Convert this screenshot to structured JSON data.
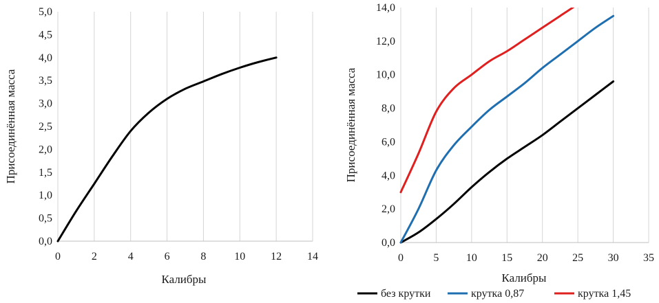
{
  "chart_data": [
    {
      "type": "line",
      "title": "",
      "xlabel": "Калибры",
      "ylabel": "Присоединённая масса",
      "xlim": [
        0,
        14
      ],
      "ylim": [
        0,
        5
      ],
      "x_ticks": [
        "0",
        "2",
        "4",
        "6",
        "8",
        "10",
        "12",
        "14"
      ],
      "y_ticks": [
        "0,0",
        "0,5",
        "1,0",
        "1,5",
        "2,0",
        "2,5",
        "3,0",
        "3,5",
        "4,0",
        "4,5",
        "5,0"
      ],
      "grid": "vertical",
      "series": [
        {
          "color": "#000000",
          "x": [
            0,
            1,
            2,
            3,
            4,
            5,
            6,
            7,
            8,
            9,
            10,
            11,
            12
          ],
          "y": [
            0,
            0.65,
            1.25,
            1.85,
            2.4,
            2.8,
            3.1,
            3.32,
            3.48,
            3.64,
            3.78,
            3.9,
            4.0
          ]
        }
      ]
    },
    {
      "type": "line",
      "title": "",
      "xlabel": "Калибры",
      "ylabel": "Присоединённая масса",
      "xlim": [
        0,
        35
      ],
      "ylim": [
        0,
        14
      ],
      "x_ticks": [
        "0",
        "5",
        "10",
        "15",
        "20",
        "25",
        "30",
        "35"
      ],
      "y_ticks": [
        "0,0",
        "2,0",
        "4,0",
        "6,0",
        "8,0",
        "10,0",
        "12,0",
        "14,0"
      ],
      "grid": "vertical",
      "legend": "bottom",
      "series": [
        {
          "name": "без крутки",
          "color": "#000000",
          "x": [
            0,
            2.5,
            5,
            7.5,
            10,
            12.5,
            15,
            17.5,
            20,
            22.5,
            25,
            27.5,
            30
          ],
          "y": [
            0,
            0.6,
            1.4,
            2.3,
            3.3,
            4.2,
            5.0,
            5.7,
            6.4,
            7.2,
            8.0,
            8.8,
            9.6
          ]
        },
        {
          "name": "крутка 0,87",
          "color": "#1f6fb0",
          "x": [
            0,
            2.5,
            5,
            7.5,
            10,
            12.5,
            15,
            17.5,
            20,
            22.5,
            25,
            27.5,
            30
          ],
          "y": [
            0,
            2.0,
            4.3,
            5.8,
            6.9,
            7.9,
            8.7,
            9.5,
            10.4,
            11.2,
            12.0,
            12.8,
            13.5
          ]
        },
        {
          "name": "крутка 1,45",
          "color": "#e01f1f",
          "x": [
            0,
            2.5,
            5,
            7.5,
            10,
            12.5,
            15,
            17.5,
            20,
            22.5,
            25
          ],
          "y": [
            3.0,
            5.3,
            7.8,
            9.2,
            10.0,
            10.8,
            11.4,
            12.1,
            12.8,
            13.5,
            14.2
          ]
        }
      ]
    }
  ]
}
